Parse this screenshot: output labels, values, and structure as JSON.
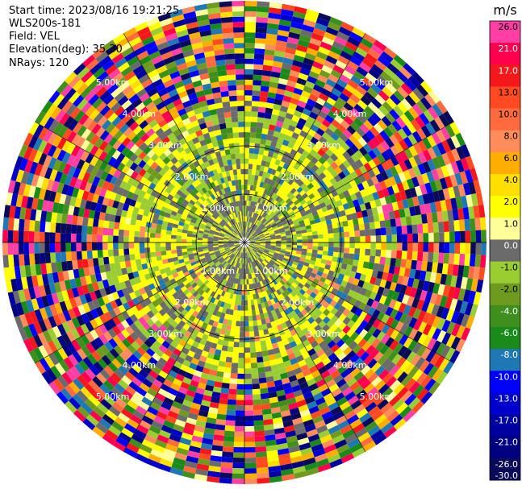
{
  "header": {
    "start_time": "Start time: 2023/08/16 19:21:25",
    "instrument": "WLS200s-181",
    "field": "Field: VEL",
    "elevation": "Elevation(deg): 35.30",
    "nrays": "NRays: 120"
  },
  "chart_data": {
    "type": "heatmap",
    "projection": "polar-ppi",
    "unit": "m/s",
    "nrays": 120,
    "ring_labels": [
      "1.00km",
      "2.00km",
      "3.00km",
      "4.00km",
      "5.00km"
    ],
    "ring_ranges_km": [
      1,
      2,
      3,
      4,
      5
    ],
    "max_range_km": 5.9,
    "colorbar": {
      "title": "m/s",
      "tick_labels": [
        "26.0",
        "21.0",
        "17.0",
        "13.0",
        "10.0",
        "8.0",
        "6.0",
        "4.0",
        "2.0",
        "1.0",
        "0.0",
        "-1.0",
        "-2.0",
        "-4.0",
        "-6.0",
        "-8.0",
        "-10.0",
        "-13.0",
        "-17.0",
        "-21.0",
        "-26.0",
        "-30.0"
      ],
      "colors": [
        "#ff3fa4",
        "#ff004f",
        "#f4171b",
        "#ff4a22",
        "#ff6b3e",
        "#ff8c5a",
        "#ffae00",
        "#ffdf00",
        "#ffff00",
        "#ffff99",
        "#6b6b6b",
        "#9acd32",
        "#6f9a20",
        "#3f8f1f",
        "#1a8a1a",
        "#1f78b4",
        "#0000ff",
        "#0000cc",
        "#0000a0",
        "#000080",
        "#0a0a5a"
      ]
    }
  }
}
